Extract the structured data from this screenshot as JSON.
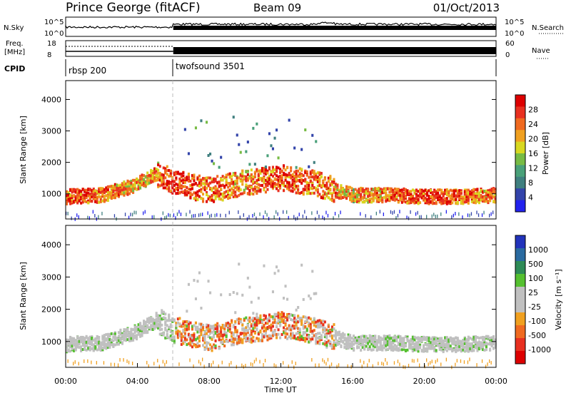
{
  "header": {
    "station": "Prince George (fitACF)",
    "beam": "Beam 09",
    "date": "01/Oct/2013"
  },
  "top_panels": {
    "nsky_label": "N.Sky",
    "nsky_ticks": [
      "10^5",
      "10^0"
    ],
    "nsearch_label": "N.Search",
    "nsearch_ticks": [
      "10^5",
      "10^0"
    ],
    "freq_label_1": "Freq.",
    "freq_label_2": "[MHz]",
    "freq_ticks": [
      "18",
      "8"
    ],
    "nave_label": "Nave",
    "nave_ticks": [
      "60",
      "0"
    ],
    "cpid_label": "CPID",
    "cpid_segments": [
      {
        "name": "rbsp 200",
        "start_hour": 0,
        "end_hour": 6
      },
      {
        "name": "twofsound 3501",
        "start_hour": 6,
        "end_hour": 24
      }
    ]
  },
  "colors": {
    "power_scale": [
      "#2222ee",
      "#3344aa",
      "#3f7f7f",
      "#49a079",
      "#77bb44",
      "#d8d820",
      "#f0a020",
      "#f06a20",
      "#e83020",
      "#dd0000"
    ],
    "velocity_scale": [
      "#2233bb",
      "#2a6aa0",
      "#2e8b57",
      "#55c030",
      "#c0c0c0",
      "#c0c0c0",
      "#f0a020",
      "#f06a20",
      "#e83020",
      "#dd0000"
    ]
  },
  "chart_data": [
    {
      "type": "heatmap",
      "panel": "power",
      "ylabel": "Slant Range [km]",
      "xlabel": "",
      "xlim": [
        0,
        24
      ],
      "ylim": [
        200,
        4600
      ],
      "yticks": [
        "1000",
        "2000",
        "3000",
        "4000"
      ],
      "colorbar_label": "Power [dB]",
      "colorbar_ticks": [
        "4",
        "8",
        "12",
        "16",
        "20",
        "24",
        "28"
      ],
      "colorbar_range": [
        0,
        30
      ],
      "echo_bands": [
        {
          "x": [
            0,
            2,
            4,
            5,
            6,
            8,
            10,
            12,
            14,
            15,
            16,
            18,
            20,
            22,
            24
          ],
          "center_km": [
            950,
            1000,
            1350,
            1700,
            1400,
            1150,
            1400,
            1550,
            1350,
            1150,
            1000,
            1000,
            950,
            950,
            1000
          ],
          "typical_power_db": [
            26,
            24,
            20,
            22,
            28,
            24,
            22,
            26,
            24,
            22,
            20,
            24,
            26,
            24,
            22
          ]
        }
      ],
      "notes": "Scatter echoes 1500-3500 km between 07:00-14:00 UT"
    },
    {
      "type": "heatmap",
      "panel": "velocity",
      "ylabel": "Slant Range [km]",
      "xlabel": "Time UT",
      "xlim": [
        0,
        24
      ],
      "ylim": [
        200,
        4600
      ],
      "x_tick_labels": [
        "00:00",
        "04:00",
        "08:00",
        "12:00",
        "16:00",
        "20:00",
        "00:00"
      ],
      "yticks": [
        "1000",
        "2000",
        "3000",
        "4000"
      ],
      "colorbar_label": "Velocity [m s⁻¹]",
      "colorbar_ticks": [
        "1000",
        "500",
        "100",
        "25",
        "-25",
        "-100",
        "-500",
        "-1000"
      ],
      "notes": "Ground scatter (grey) along 1000-1500 km; negative velocities 06:00-15:00 UT"
    }
  ]
}
